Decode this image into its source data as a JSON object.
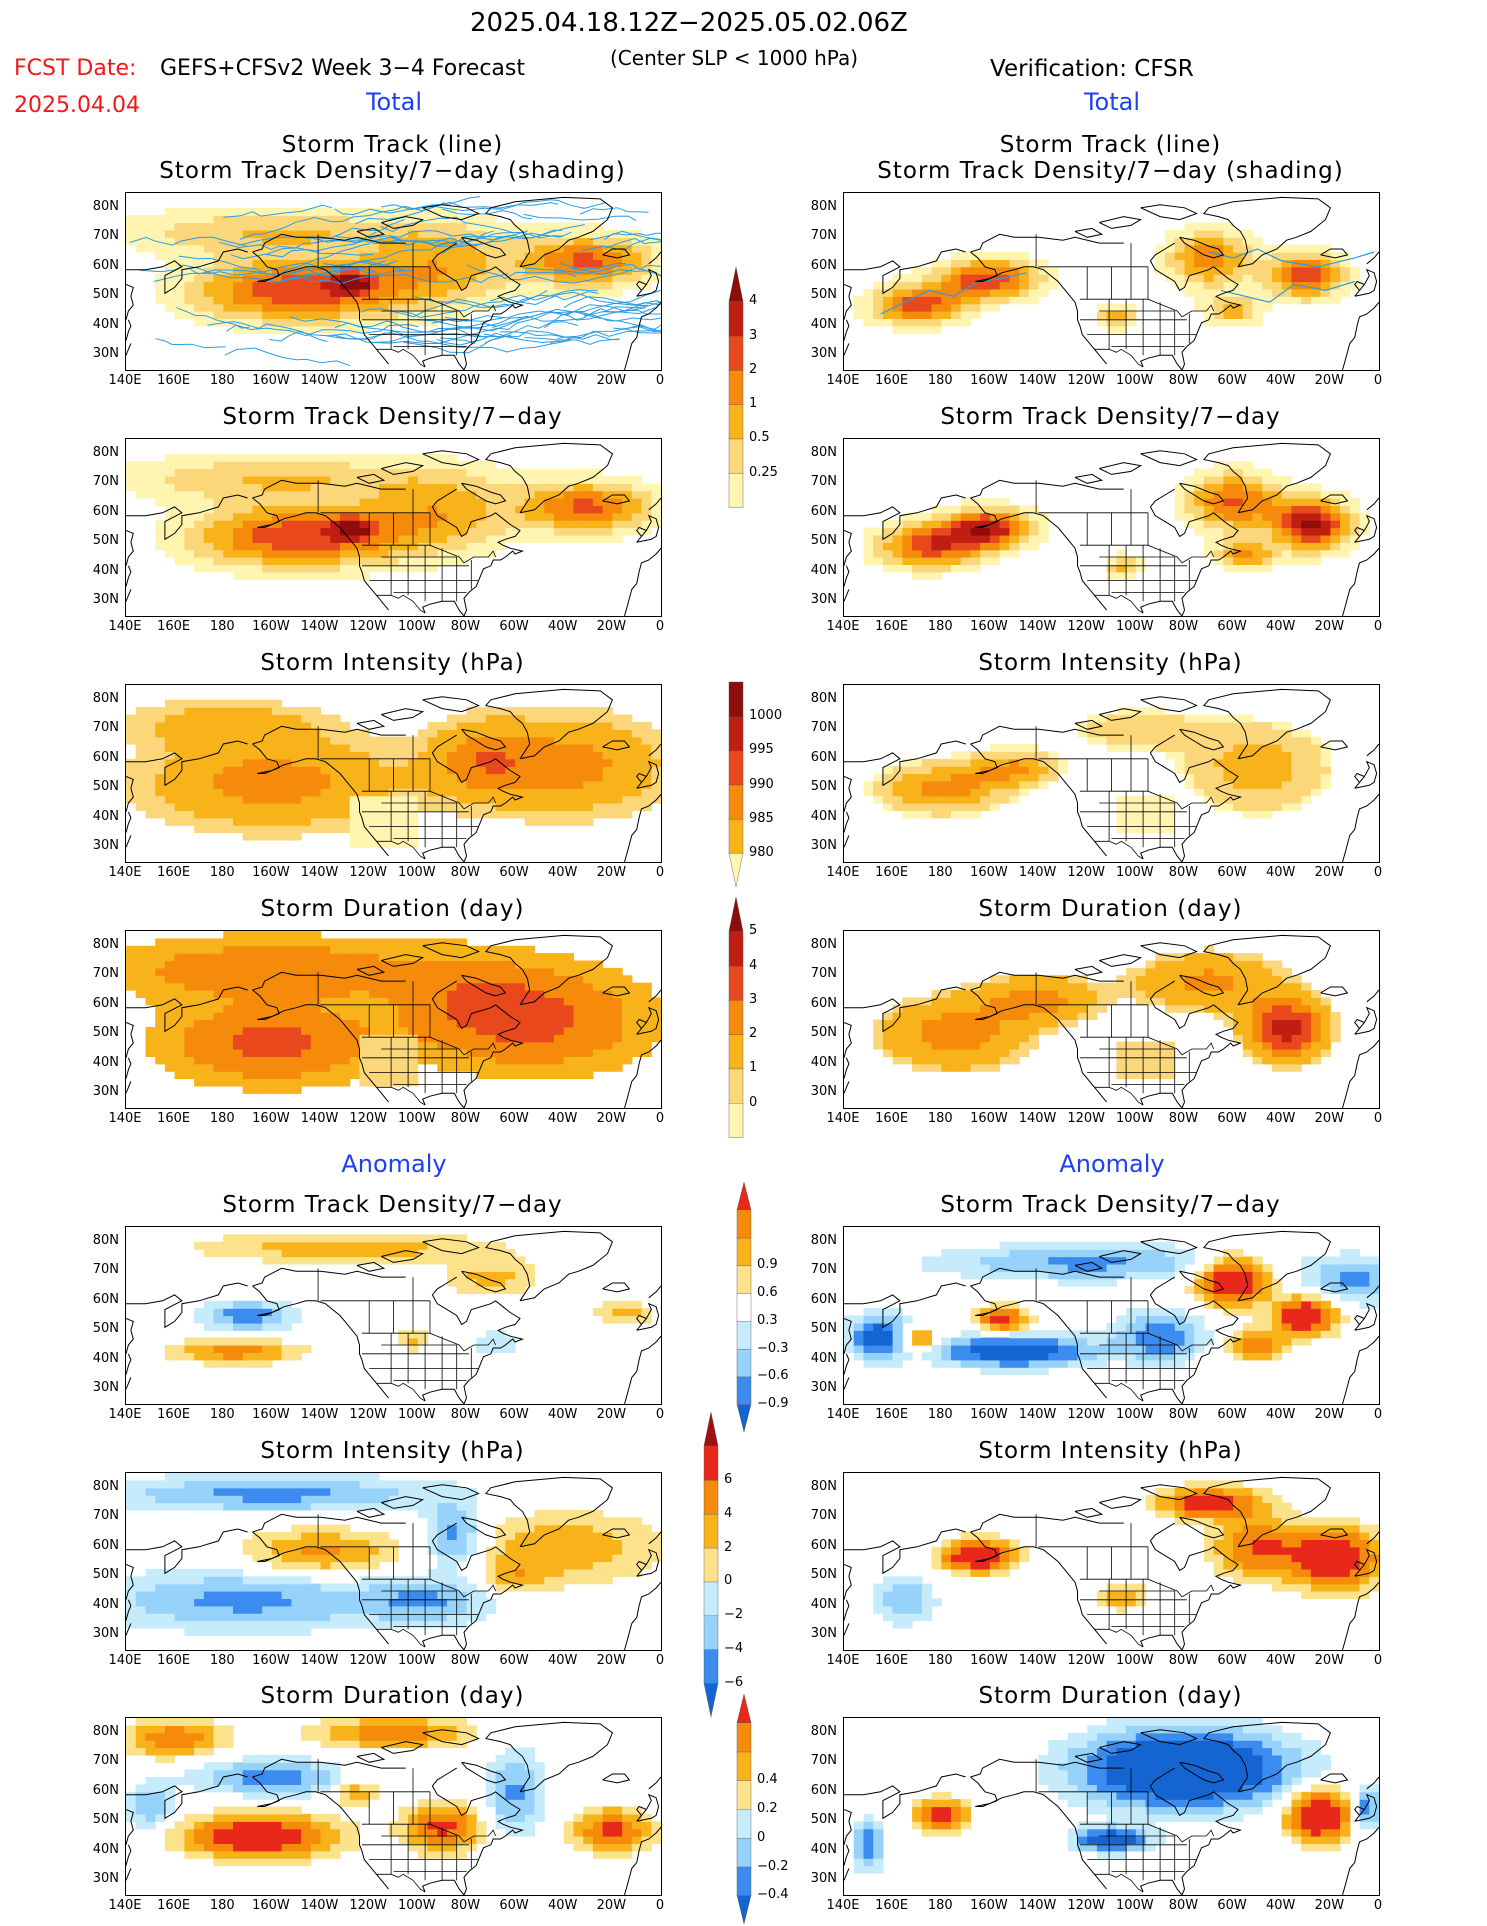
{
  "header": {
    "date_range": "2025.04.18.12Z−2025.05.02.06Z",
    "criterion": "(Center SLP < 1000 hPa)",
    "fcst_label": "FCST Date:",
    "fcst_date": "2025.04.04",
    "left_model": "GEFS+CFSv2 Week 3−4 Forecast",
    "right_model": "Verification: CFSR"
  },
  "sections": {
    "total": "Total",
    "anomaly": "Anomaly"
  },
  "axes": {
    "lat_labels": [
      "80N",
      "70N",
      "60N",
      "50N",
      "40N",
      "30N"
    ],
    "lon_labels": [
      "140E",
      "160E",
      "180",
      "160W",
      "140W",
      "120W",
      "100W",
      "80W",
      "60W",
      "40W",
      "20W",
      "0"
    ]
  },
  "panels": [
    {
      "id": "l1",
      "title1": "Storm Track (line)",
      "title2": "Storm Track Density/7−day (shading)",
      "palette": "total",
      "pattern": "fc_track",
      "lines": true
    },
    {
      "id": "r1",
      "title1": "Storm Track (line)",
      "title2": "Storm Track Density/7−day (shading)",
      "palette": "total",
      "pattern": "ob_track",
      "lines": false
    },
    {
      "id": "l2",
      "title1": "Storm Track Density/7−day",
      "title2": "",
      "palette": "total",
      "pattern": "fc_dens"
    },
    {
      "id": "r2",
      "title1": "Storm Track Density/7−day",
      "title2": "",
      "palette": "total",
      "pattern": "ob_dens"
    },
    {
      "id": "l3",
      "title1": "Storm Intensity (hPa)",
      "title2": "",
      "palette": "total",
      "pattern": "fc_int"
    },
    {
      "id": "r3",
      "title1": "Storm Intensity (hPa)",
      "title2": "",
      "palette": "total",
      "pattern": "ob_int"
    },
    {
      "id": "l4",
      "title1": "Storm Duration (day)",
      "title2": "",
      "palette": "total",
      "pattern": "fc_dur"
    },
    {
      "id": "r4",
      "title1": "Storm Duration (day)",
      "title2": "",
      "palette": "total",
      "pattern": "ob_dur"
    },
    {
      "id": "l5",
      "title1": "Storm Track Density/7−day",
      "title2": "",
      "palette": "anom",
      "pattern": "fa_dens"
    },
    {
      "id": "r5",
      "title1": "Storm Track Density/7−day",
      "title2": "",
      "palette": "anom",
      "pattern": "oa_dens"
    },
    {
      "id": "l6",
      "title1": "Storm Intensity (hPa)",
      "title2": "",
      "palette": "anom",
      "pattern": "fa_int"
    },
    {
      "id": "r6",
      "title1": "Storm Intensity (hPa)",
      "title2": "",
      "palette": "anom",
      "pattern": "oa_int"
    },
    {
      "id": "l7",
      "title1": "Storm Duration (day)",
      "title2": "",
      "palette": "anom",
      "pattern": "fa_dur"
    },
    {
      "id": "r7",
      "title1": "Storm Duration (day)",
      "title2": "",
      "palette": "anom",
      "pattern": "oa_dur"
    }
  ],
  "colorbars": [
    {
      "id": "cb1",
      "direction": "up",
      "labels": [
        "0.25",
        "0.5",
        "1",
        "2",
        "3",
        "4"
      ],
      "colors": [
        "#fff5b0",
        "#fbd77a",
        "#f9b31a",
        "#f58a0b",
        "#e8481b",
        "#c01d13",
        "#8e0c0c"
      ]
    },
    {
      "id": "cb2",
      "direction": "down",
      "labels": [
        "1000",
        "995",
        "990",
        "985",
        "980"
      ],
      "colors": [
        "#fff5b0",
        "#f9b31a",
        "#f58a0b",
        "#e8481b",
        "#c01d13",
        "#8e0c0c"
      ]
    },
    {
      "id": "cb3",
      "direction": "up",
      "labels": [
        "0",
        "1",
        "2",
        "3",
        "4",
        "5"
      ],
      "colors": [
        "#fff5b0",
        "#fbd77a",
        "#f9b31a",
        "#f58a0b",
        "#e8481b",
        "#c01d13",
        "#8e0c0c"
      ]
    },
    {
      "id": "cb4",
      "direction": "both",
      "labels": [
        "−0.9",
        "−0.6",
        "−0.3",
        "0.3",
        "0.6",
        "0.9"
      ],
      "colors": [
        "#1464d2",
        "#3c8cf0",
        "#96d2fa",
        "#c6ecfb",
        "#ffffff",
        "#fde28c",
        "#f9b31a",
        "#f58a0b",
        "#e8281b"
      ]
    },
    {
      "id": "cb5",
      "direction": "both",
      "labels": [
        "−6",
        "−4",
        "−2",
        "0",
        "2",
        "4",
        "6"
      ],
      "colors": [
        "#1464d2",
        "#3c8cf0",
        "#96d2fa",
        "#c6ecfb",
        "#fde28c",
        "#f9b31a",
        "#f58a0b",
        "#e8281b",
        "#a01010"
      ]
    },
    {
      "id": "cb6",
      "direction": "both",
      "labels": [
        "−0.4",
        "−0.2",
        "0",
        "0.2",
        "0.4"
      ],
      "colors": [
        "#1464d2",
        "#3c8cf0",
        "#96d2fa",
        "#c6ecfb",
        "#fde28c",
        "#f9b31a",
        "#f58a0b",
        "#e8281b"
      ]
    }
  ],
  "colors": {
    "red_text": "#f01818",
    "blue_text": "#1f3ff5",
    "track_line": "#2a9ce6",
    "coast": "#000000"
  }
}
